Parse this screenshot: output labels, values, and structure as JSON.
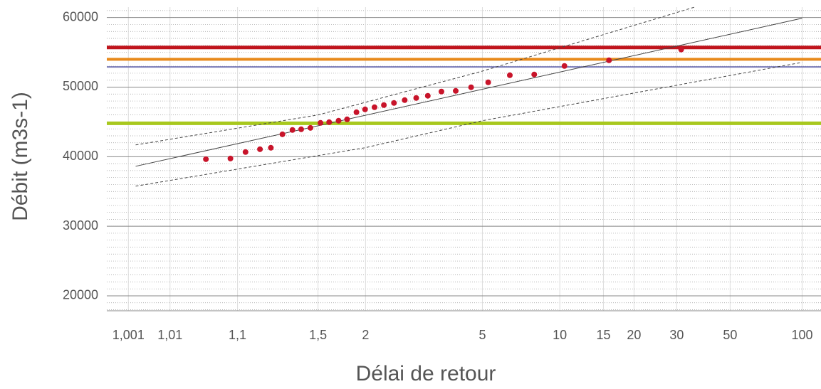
{
  "chart_data": {
    "type": "scatter",
    "xlabel": "Délai de retour",
    "ylabel": "Débit (m3s-1)",
    "xscale": "gumbel",
    "xlim": [
      1.0002,
      120
    ],
    "xticks": [
      {
        "value": 1.001,
        "label": "1,001"
      },
      {
        "value": 1.01,
        "label": "1,01"
      },
      {
        "value": 1.1,
        "label": "1,1"
      },
      {
        "value": 1.5,
        "label": "1,5"
      },
      2,
      5,
      10,
      15,
      20,
      30,
      50,
      100
    ],
    "ylim": [
      17850,
      61500
    ],
    "yticks": [
      20000,
      30000,
      40000,
      50000,
      60000
    ],
    "grid": true,
    "color": "#c8142a",
    "x": [
      1.04,
      1.083,
      1.122,
      1.17,
      1.214,
      1.269,
      1.324,
      1.378,
      1.442,
      1.52,
      1.595,
      1.685,
      1.775,
      1.884,
      1.994,
      2.127,
      2.272,
      2.445,
      2.649,
      2.894,
      3.171,
      3.54,
      3.984,
      4.537,
      5.258,
      6.361,
      7.918,
      10.44,
      15.8,
      31.3
    ],
    "values": [
      39640,
      39740,
      40670,
      41070,
      41280,
      43220,
      43840,
      43940,
      44140,
      44860,
      44960,
      45170,
      45370,
      46390,
      46800,
      47110,
      47420,
      47720,
      48130,
      48440,
      48750,
      49360,
      49460,
      49980,
      50690,
      51710,
      51820,
      53040,
      53860,
      55400
    ],
    "hlines": [
      {
        "value": 55700,
        "color": "#c0141c",
        "width": 5
      },
      {
        "value": 54000,
        "color": "#e8891a",
        "width": 4
      },
      {
        "value": 52900,
        "color": "#7a7bb8",
        "width": 2
      },
      {
        "value": 44800,
        "color": "#a8c81e",
        "width": 5
      }
    ],
    "curves": [
      {
        "x": [
          1.0016,
          100
        ],
        "values": [
          38620,
          59900
        ],
        "color": "#444444",
        "dash": false
      },
      {
        "x": [
          1.0016,
          1.5,
          5,
          35.6
        ],
        "values": [
          41690,
          46000,
          52300,
          61500
        ],
        "color": "#444444",
        "dash": true
      },
      {
        "x": [
          1.0016,
          2,
          5,
          100
        ],
        "values": [
          35760,
          41300,
          45170,
          53560
        ],
        "color": "#444444",
        "dash": true
      }
    ]
  }
}
